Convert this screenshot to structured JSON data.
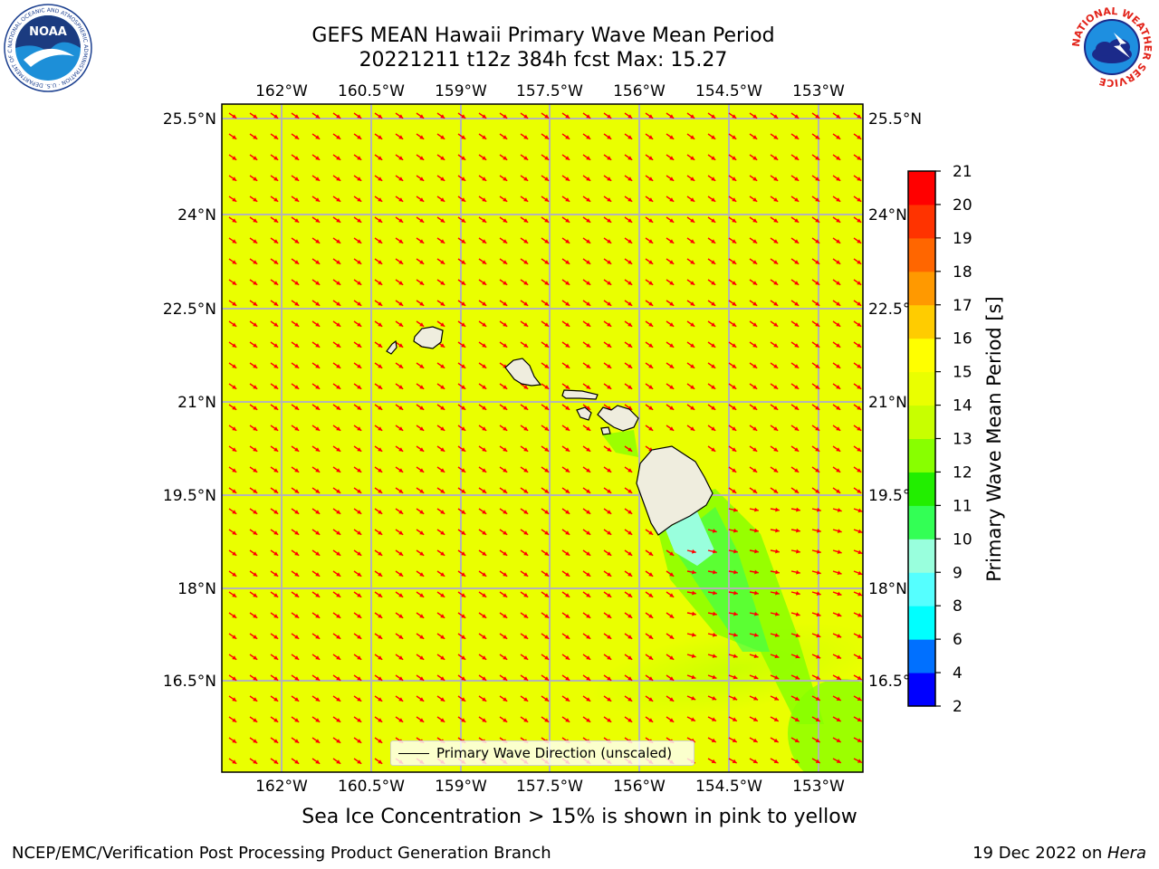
{
  "header": {
    "title_line1": "GEFS MEAN Hawaii Primary Wave Mean Period",
    "title_line2": "20221211 t12z 384h fcst   Max: 15.27"
  },
  "logos": {
    "noaa": {
      "text": "NOAA",
      "ring_text": "NATIONAL OCEANIC AND ATMOSPHERIC ADMINISTRATION · U.S. DEPARTMENT OF COMMERCE"
    },
    "nws": {
      "ring_text": "NATIONAL WEATHER SERVICE"
    }
  },
  "map": {
    "lon_ticks": [
      "162°W",
      "160.5°W",
      "159°W",
      "157.5°W",
      "156°W",
      "154.5°W",
      "153°W"
    ],
    "lat_ticks": [
      "25.5°N",
      "24°N",
      "22.5°N",
      "21°N",
      "19.5°N",
      "18°N",
      "16.5°N"
    ],
    "field_color": "#eaff00",
    "arrow_color": "#ff0000",
    "land_color": "#efedde",
    "grid_color": "#b4b4b4",
    "legend_label": "Primary Wave Direction (unscaled)"
  },
  "colorbar": {
    "title": "Primary Wave Mean Period [s]",
    "ticks": [
      "2",
      "4",
      "6",
      "8",
      "9",
      "10",
      "11",
      "12",
      "13",
      "14",
      "15",
      "16",
      "17",
      "18",
      "19",
      "20",
      "21"
    ],
    "colors": [
      "#0000ff",
      "#0070ff",
      "#00ffff",
      "#55ffff",
      "#99ffdd",
      "#33ff55",
      "#22ee00",
      "#88ff00",
      "#c8ff00",
      "#eaff00",
      "#ffff00",
      "#ffcc00",
      "#ff9900",
      "#ff6600",
      "#ff3300",
      "#ff0000"
    ]
  },
  "subcaption": "Sea Ice Concentration > 15% is shown in pink to yellow",
  "footer": {
    "left": "NCEP/EMC/Verification Post Processing Product Generation Branch",
    "date": "19 Dec 2022 on ",
    "host": "Hera"
  }
}
